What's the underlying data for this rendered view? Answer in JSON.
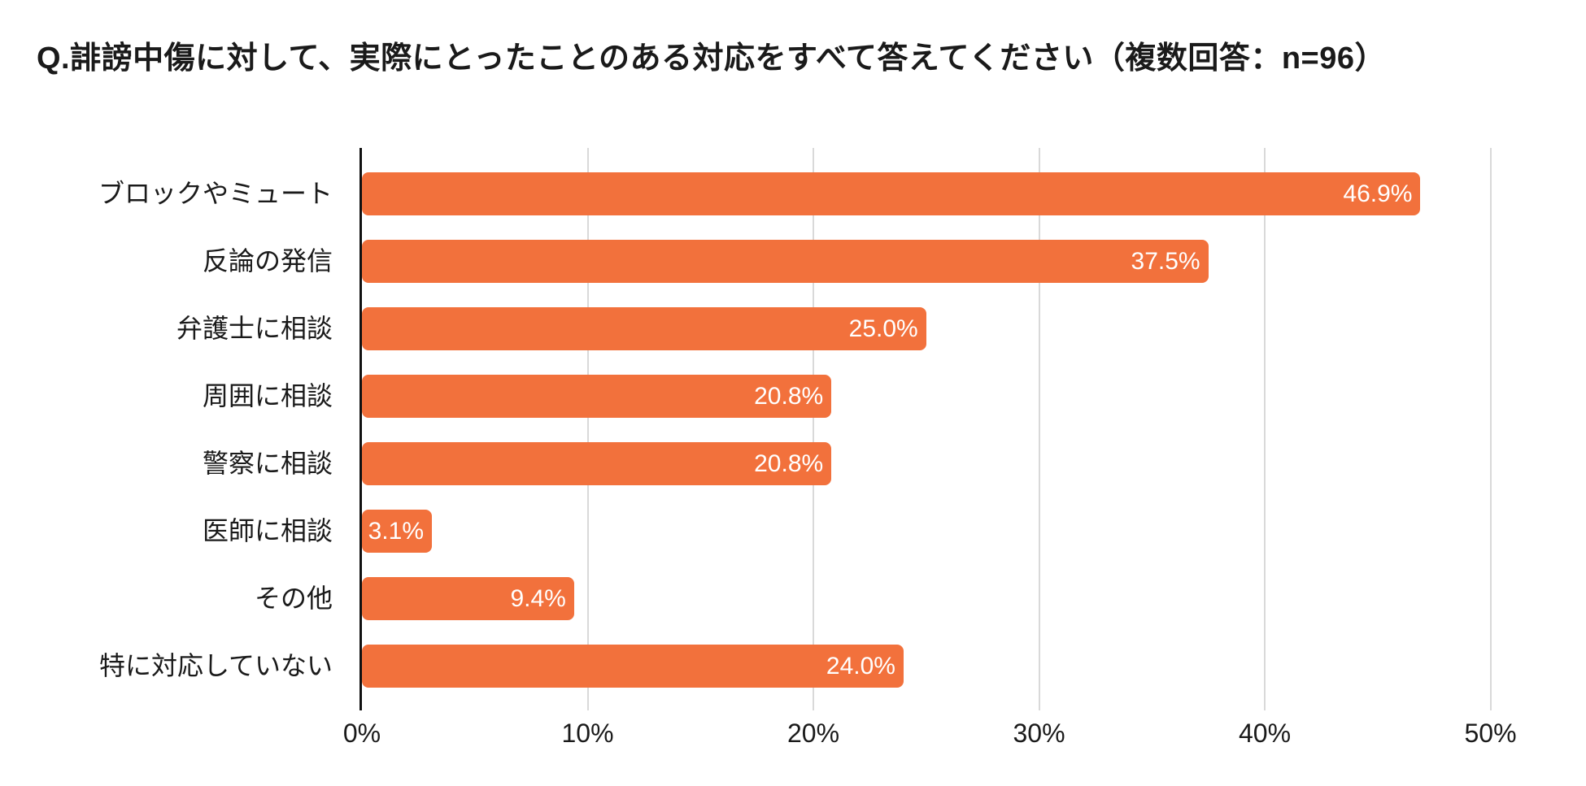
{
  "title": "Q.誹謗中傷に対して、実際にとったことのある対応をすべて答えてください（複数回答：n=96）",
  "colors": {
    "bar": "#f2713c",
    "gridline": "#d9d9d9",
    "axis": "#111111",
    "value_label_text": "#ffffff",
    "text": "#1a1a1a",
    "background": "#ffffff"
  },
  "chart_data": {
    "type": "bar",
    "orientation": "horizontal",
    "title": "Q.誹謗中傷に対して、実際にとったことのある対応をすべて答えてください（複数回答：n=96）",
    "n": 96,
    "categories": [
      "ブロックやミュート",
      "反論の発信",
      "弁護士に相談",
      "周囲に相談",
      "警察に相談",
      "医師に相談",
      "その他",
      "特に対応していない"
    ],
    "values": [
      46.9,
      37.5,
      25.0,
      20.8,
      20.8,
      3.1,
      9.4,
      24.0
    ],
    "value_labels": [
      "46.9%",
      "37.5%",
      "25.0%",
      "20.8%",
      "20.8%",
      "3.1%",
      "9.4%",
      "24.0%"
    ],
    "xlabel": "",
    "ylabel": "",
    "xlim": [
      0,
      50
    ],
    "x_tick_values": [
      0,
      10,
      20,
      30,
      40,
      50
    ],
    "x_tick_labels": [
      "0%",
      "10%",
      "20%",
      "30%",
      "40%",
      "50%"
    ],
    "grid": true,
    "legend": false
  }
}
